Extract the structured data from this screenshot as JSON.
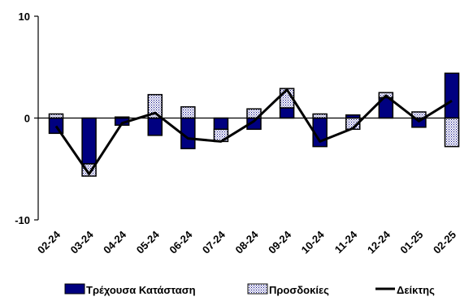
{
  "chart_data": {
    "type": "bar",
    "subtype": "stacked-bar-with-line",
    "categories": [
      "02-24",
      "03-24",
      "04-24",
      "05-24",
      "06-24",
      "07-24",
      "08-24",
      "09-24",
      "10-24",
      "11-24",
      "12-24",
      "01-25",
      "02-25"
    ],
    "series": [
      {
        "name": "Τρέχουσα Κατάσταση",
        "kind": "bar",
        "color": "#000080",
        "pattern": "solid",
        "values": [
          -1.5,
          -4.5,
          -0.7,
          -1.7,
          -3.0,
          -1.1,
          -1.1,
          1.0,
          -2.8,
          0.3,
          2.0,
          -0.9,
          4.4
        ]
      },
      {
        "name": "Προσδοκίες",
        "kind": "bar",
        "color": "#ffffff",
        "pattern": "dotted",
        "values": [
          0.4,
          -1.2,
          0.1,
          2.3,
          1.1,
          -1.2,
          0.9,
          1.9,
          0.4,
          -1.1,
          0.5,
          0.6,
          -2.8
        ]
      },
      {
        "name": "Δείκτης",
        "kind": "line",
        "color": "#000000",
        "values": [
          -0.8,
          -5.5,
          -0.5,
          0.5,
          -2.0,
          -2.3,
          -0.3,
          2.8,
          -2.3,
          -1.0,
          2.2,
          -0.3,
          1.7
        ]
      }
    ],
    "y_ticks": [
      "10",
      "0",
      "-10"
    ],
    "ylim": [
      -10,
      10
    ],
    "grid": false,
    "legend": {
      "position": "bottom"
    }
  }
}
